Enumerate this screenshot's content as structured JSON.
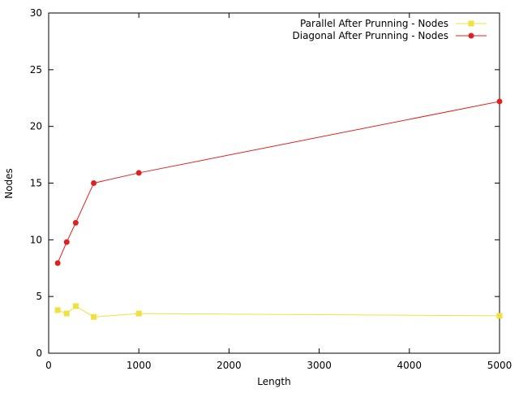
{
  "chart_data": {
    "type": "line",
    "title": "",
    "xlabel": "Length",
    "ylabel": "Nodes",
    "xlim": [
      0,
      5000
    ],
    "ylim": [
      0,
      30
    ],
    "xticks": [
      0,
      1000,
      2000,
      3000,
      4000,
      5000
    ],
    "yticks": [
      0,
      5,
      10,
      15,
      20,
      25,
      30
    ],
    "grid": false,
    "legend_position": "top-right",
    "series": [
      {
        "name": "Parallel After Prunning - Nodes",
        "color": "#f0e040",
        "marker": "square",
        "x": [
          100,
          200,
          300,
          500,
          1000,
          5000
        ],
        "y": [
          3.8,
          3.5,
          4.15,
          3.2,
          3.5,
          3.3
        ]
      },
      {
        "name": "Diagonal After Prunning - Nodes",
        "color": "#dd2222",
        "marker": "circle",
        "x": [
          100,
          200,
          300,
          500,
          1000,
          5000
        ],
        "y": [
          7.95,
          9.8,
          11.5,
          15.0,
          15.9,
          22.2
        ]
      }
    ]
  }
}
